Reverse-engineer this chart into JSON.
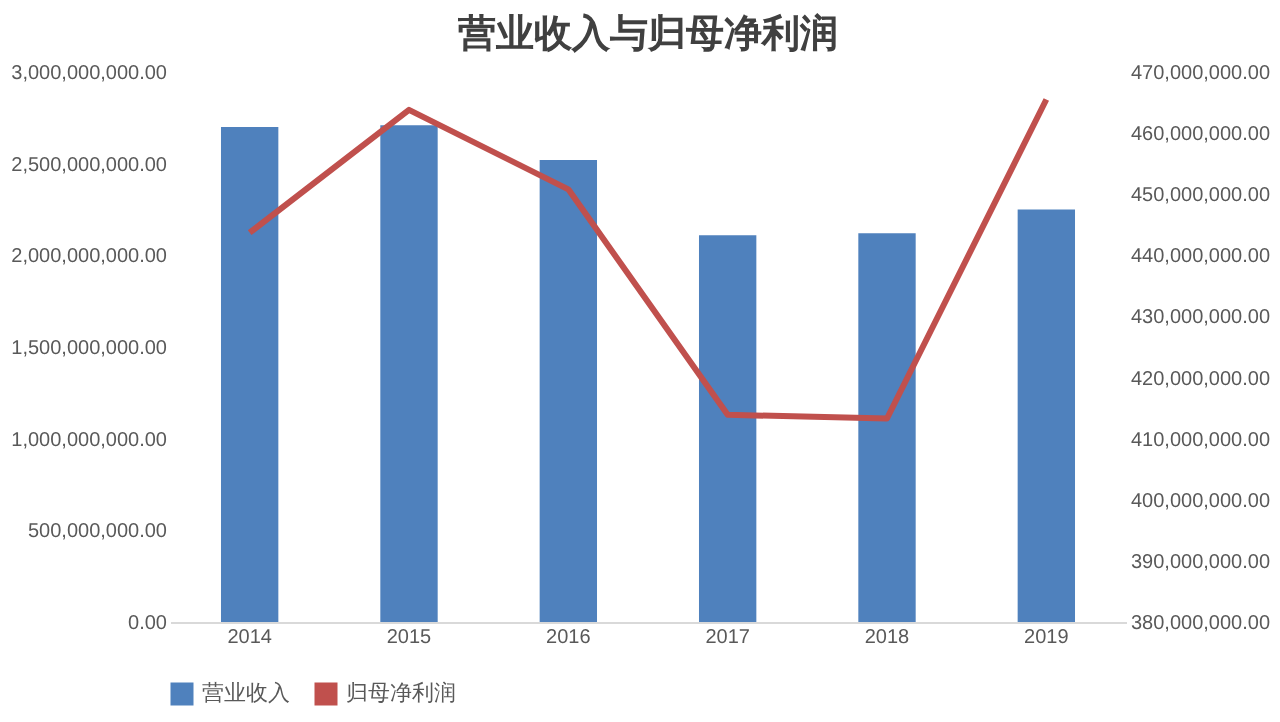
{
  "chart_data": {
    "type": "bar",
    "title": "营业收入与归母净利润",
    "categories": [
      "2014",
      "2015",
      "2016",
      "2017",
      "2018",
      "2019"
    ],
    "series": [
      {
        "name": "营业收入",
        "color": "#4f81bd",
        "values": [
          2700000000,
          2710000000,
          2520000000,
          2110000000,
          2120000000,
          2250000000
        ]
      },
      {
        "name": "归母净利润",
        "type": "line",
        "axis": "y2",
        "color": "#c0504d",
        "values": [
          443700000,
          463800000,
          450800000,
          413900000,
          413300000,
          465500000
        ]
      }
    ],
    "ylim": [
      0,
      3000000000
    ],
    "yticks": [
      {
        "value": 0,
        "label": "0.00"
      },
      {
        "value": 500000000,
        "label": "500,000,000.00"
      },
      {
        "value": 1000000000,
        "label": "1,000,000,000.00"
      },
      {
        "value": 1500000000,
        "label": "1,500,000,000.00"
      },
      {
        "value": 2000000000,
        "label": "2,000,000,000.00"
      },
      {
        "value": 2500000000,
        "label": "2,500,000,000.00"
      },
      {
        "value": 3000000000,
        "label": "3,000,000,000.00"
      }
    ],
    "y2lim": [
      380000000,
      470000000
    ],
    "y2ticks": [
      {
        "value": 380000000,
        "label": "380,000,000.00"
      },
      {
        "value": 390000000,
        "label": "390,000,000.00"
      },
      {
        "value": 400000000,
        "label": "400,000,000.00"
      },
      {
        "value": 410000000,
        "label": "410,000,000.00"
      },
      {
        "value": 420000000,
        "label": "420,000,000.00"
      },
      {
        "value": 430000000,
        "label": "430,000,000.00"
      },
      {
        "value": 440000000,
        "label": "440,000,000.00"
      },
      {
        "value": 450000000,
        "label": "450,000,000.00"
      },
      {
        "value": 460000000,
        "label": "460,000,000.00"
      },
      {
        "value": 470000000,
        "label": "470,000,000.00"
      }
    ],
    "grid": false,
    "legend": "bottom",
    "marker": "none",
    "line_style": "solid"
  }
}
